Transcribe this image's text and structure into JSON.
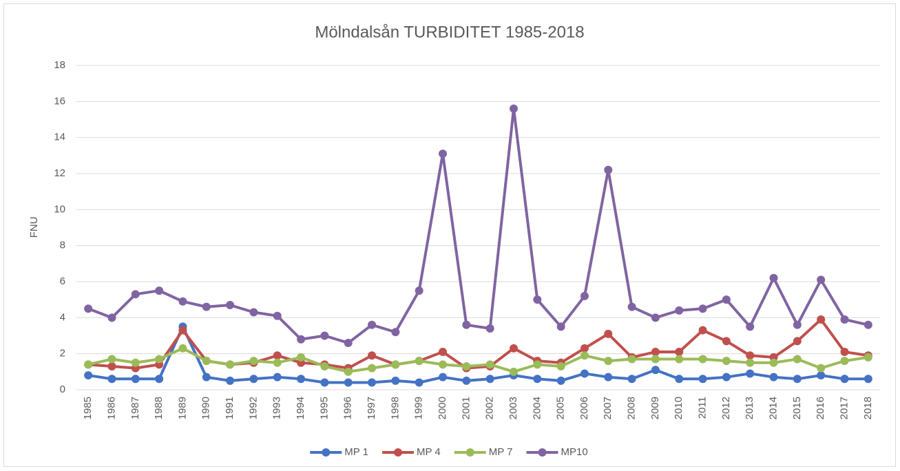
{
  "chart_data": {
    "type": "line",
    "title": "Mölndalsån TURBIDITET 1985-2018",
    "y_label": "FNU",
    "categories": [
      "1985",
      "1986",
      "1987",
      "1988",
      "1989",
      "1990",
      "1991",
      "1992",
      "1993",
      "1994",
      "1995",
      "1996",
      "1997",
      "1998",
      "1999",
      "2000",
      "2001",
      "2002",
      "2003",
      "2004",
      "2005",
      "2006",
      "2007",
      "2008",
      "2009",
      "2010",
      "2011",
      "2012",
      "2013",
      "2014",
      "2015",
      "2016",
      "2017",
      "2018"
    ],
    "series": [
      {
        "name": "MP 1",
        "color": "#4472c4",
        "values": [
          0.8,
          0.6,
          0.6,
          0.6,
          3.5,
          0.7,
          0.5,
          0.6,
          0.7,
          0.6,
          0.4,
          0.4,
          0.4,
          0.5,
          0.4,
          0.7,
          0.5,
          0.6,
          0.8,
          0.6,
          0.5,
          0.9,
          0.7,
          0.6,
          1.1,
          0.6,
          0.6,
          0.7,
          0.9,
          0.7,
          0.6,
          0.8,
          0.6,
          0.6
        ]
      },
      {
        "name": "MP 4",
        "color": "#c0504d",
        "values": [
          1.4,
          1.3,
          1.2,
          1.4,
          3.3,
          1.6,
          1.4,
          1.5,
          1.9,
          1.5,
          1.4,
          1.2,
          1.9,
          1.4,
          1.6,
          2.1,
          1.2,
          1.3,
          2.3,
          1.6,
          1.5,
          2.3,
          3.1,
          1.8,
          2.1,
          2.1,
          3.3,
          2.7,
          1.9,
          1.8,
          2.7,
          3.9,
          2.1,
          1.9
        ]
      },
      {
        "name": "MP 7",
        "color": "#9bbb59",
        "values": [
          1.4,
          1.7,
          1.5,
          1.7,
          2.3,
          1.6,
          1.4,
          1.6,
          1.5,
          1.8,
          1.3,
          1.0,
          1.2,
          1.4,
          1.6,
          1.4,
          1.3,
          1.4,
          1.0,
          1.4,
          1.3,
          1.9,
          1.6,
          1.7,
          1.7,
          1.7,
          1.7,
          1.6,
          1.5,
          1.5,
          1.7,
          1.2,
          1.6,
          1.8
        ]
      },
      {
        "name": "MP10",
        "color": "#8064a2",
        "values": [
          4.5,
          4.0,
          5.3,
          5.5,
          4.9,
          4.6,
          4.7,
          4.3,
          4.1,
          2.8,
          3.0,
          2.6,
          3.6,
          3.2,
          5.5,
          13.1,
          3.6,
          3.4,
          15.6,
          5.0,
          3.5,
          5.2,
          12.2,
          4.6,
          4.0,
          4.4,
          4.5,
          5.0,
          3.5,
          6.2,
          3.6,
          6.1,
          3.9,
          3.6
        ]
      }
    ],
    "ylim": [
      0,
      18
    ],
    "yticks": [
      0,
      2,
      4,
      6,
      8,
      10,
      12,
      14,
      16,
      18
    ],
    "grid": true,
    "legend": "bottom"
  }
}
